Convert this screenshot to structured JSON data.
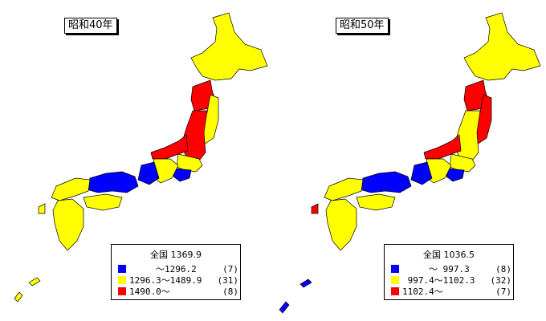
{
  "colors": {
    "low": "#0000ff",
    "mid": "#ffff00",
    "high": "#ff0000",
    "border": "#000000"
  },
  "maps": [
    {
      "title": "昭和40年",
      "national_label": "全国",
      "national_value": "1369.9",
      "legend": [
        {
          "swatch": "low",
          "range": "　　　～1296.2",
          "count": "(7)"
        },
        {
          "swatch": "mid",
          "range": "1296.3～1489.9",
          "count": "(31)"
        },
        {
          "swatch": "high",
          "range": "1490.0～",
          "count": "(8)"
        }
      ],
      "regions": {
        "hokkaido": "mid",
        "tohoku_north": "high",
        "tohoku_east": "mid",
        "tohoku_west": "high",
        "hokuriku": "high",
        "kanto": "mid",
        "tokyo": "low",
        "chubu": "mid",
        "tokai": "low",
        "kinki": "low",
        "chugoku": "mid",
        "shikoku": "mid",
        "kyushu": "mid",
        "nagasaki": "mid",
        "okinawa": "mid"
      }
    },
    {
      "title": "昭和50年",
      "national_label": "全国",
      "national_value": "1036.5",
      "legend": [
        {
          "swatch": "low",
          "range": "　　　～ 997.3",
          "count": "(8)"
        },
        {
          "swatch": "mid",
          "range": " 997.4～1102.3",
          "count": "(32)"
        },
        {
          "swatch": "high",
          "range": "1102.4～",
          "count": "(7)"
        }
      ],
      "regions": {
        "hokkaido": "mid",
        "tohoku_north": "high",
        "tohoku_east": "high",
        "tohoku_west": "mid",
        "hokuriku": "high",
        "kanto": "mid",
        "tokyo": "low",
        "chubu": "mid",
        "tokai": "low",
        "kinki": "low",
        "chugoku": "mid",
        "shikoku": "mid",
        "kyushu": "mid",
        "nagasaki": "high",
        "okinawa": "low"
      }
    }
  ]
}
